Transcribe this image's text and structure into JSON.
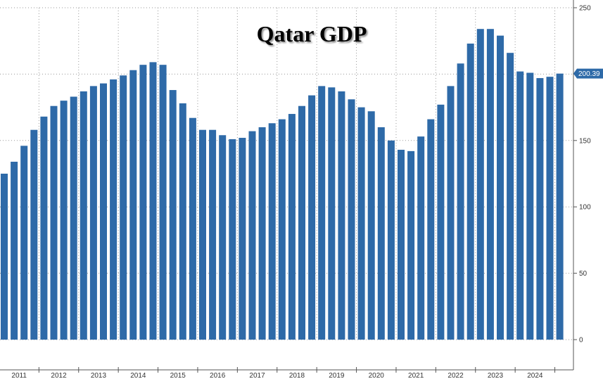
{
  "chart_data": {
    "type": "bar",
    "title": "Qatar GDP",
    "xlabel": "",
    "ylabel": "",
    "ylim": [
      0,
      250
    ],
    "y_ticks": [
      0,
      50,
      100,
      150,
      200,
      250
    ],
    "y_axis_side": "right",
    "grid": "dotted horizontal and vertical",
    "bar_color": "#2e6aa8",
    "last_value_label": "200.39",
    "last_value_label_color": "#2e6aa8",
    "year_labels": [
      "2011",
      "2012",
      "2013",
      "2014",
      "2015",
      "2016",
      "2017",
      "2018",
      "2019",
      "2020",
      "2021",
      "2022",
      "2023",
      "2024"
    ],
    "values": [
      125,
      134,
      146,
      158,
      168,
      176,
      180,
      183,
      187,
      191,
      193,
      196,
      199,
      203,
      207,
      209,
      207,
      188,
      178,
      167,
      158,
      158,
      154,
      151,
      152,
      157,
      160,
      163,
      166,
      170,
      176,
      184,
      191,
      190,
      187,
      181,
      175,
      172,
      160,
      150,
      143,
      142,
      153,
      166,
      177,
      191,
      208,
      223,
      234,
      234,
      229,
      216,
      202,
      201,
      197,
      198,
      200.39
    ]
  }
}
